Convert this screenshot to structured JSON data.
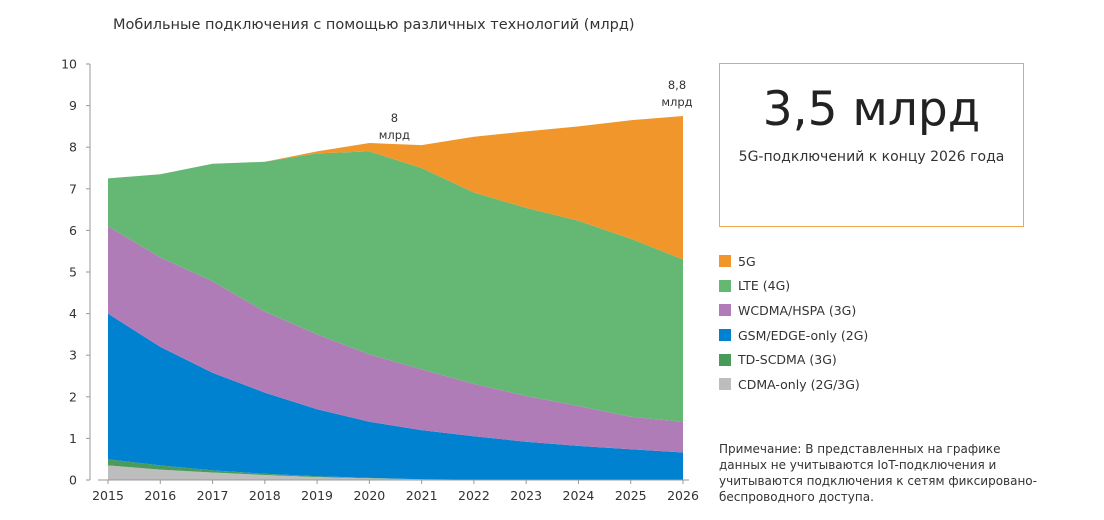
{
  "chart_data": {
    "type": "area",
    "stacked": true,
    "title": "Мобильные подключения с помощью различных технологий (млрд)",
    "xlabel": "",
    "ylabel": "",
    "x": [
      "2015",
      "2016",
      "2017",
      "2018",
      "2019",
      "2020",
      "2021",
      "2022",
      "2023",
      "2024",
      "2025",
      "2026"
    ],
    "ylim": [
      0,
      10
    ],
    "yticks": [
      "0",
      "1",
      "2",
      "3",
      "4",
      "5",
      "6",
      "7",
      "8",
      "9",
      "10"
    ],
    "grid": false,
    "legend_position": "right",
    "series": [
      {
        "name": "CDMA-only (2G/3G)",
        "color": "#bdbdbd",
        "values": [
          0.35,
          0.25,
          0.18,
          0.12,
          0.07,
          0.04,
          0.02,
          0.01,
          0.0,
          0.0,
          0.0,
          0.0
        ]
      },
      {
        "name": "TD-SCDMA (3G)",
        "color": "#4a9a5c",
        "values": [
          0.15,
          0.1,
          0.05,
          0.03,
          0.02,
          0.01,
          0.0,
          0.0,
          0.0,
          0.0,
          0.0,
          0.0
        ]
      },
      {
        "name": "GSM/EDGE-only (2G)",
        "color": "#0082d1",
        "values": [
          3.5,
          2.85,
          2.35,
          1.95,
          1.61,
          1.35,
          1.18,
          1.04,
          0.92,
          0.82,
          0.74,
          0.66
        ]
      },
      {
        "name": "WCDMA/HSPA (3G)",
        "color": "#b07cb8",
        "values": [
          2.1,
          2.15,
          2.2,
          1.95,
          1.8,
          1.62,
          1.46,
          1.26,
          1.1,
          0.96,
          0.78,
          0.74
        ]
      },
      {
        "name": "LTE (4G)",
        "color": "#64b874",
        "values": [
          1.15,
          2.0,
          2.82,
          3.6,
          4.35,
          4.88,
          4.84,
          4.6,
          4.52,
          4.45,
          4.28,
          3.9
        ]
      },
      {
        "name": "5G",
        "color": "#f0962a",
        "values": [
          0.0,
          0.0,
          0.0,
          0.0,
          0.05,
          0.2,
          0.55,
          1.34,
          1.84,
          2.27,
          2.85,
          3.45
        ]
      }
    ],
    "annotations": [
      {
        "x": "2020",
        "y": 8.0,
        "line1": "8",
        "line2": "млрд"
      },
      {
        "x": "2026",
        "y": 8.8,
        "line1": "8,8",
        "line2": "млрд"
      }
    ]
  },
  "kpi": {
    "value": "3,5 млрд",
    "caption": "5G-подключений к концу 2026 года",
    "border_color": "#f0a64a"
  },
  "legend_order": [
    "5G",
    "LTE (4G)",
    "WCDMA/HSPA (3G)",
    "GSM/EDGE-only (2G)",
    "TD-SCDMA (3G)",
    "CDMA-only (2G/3G)"
  ],
  "note": "Примечание: В представленных на графике данных не учитываются IoT-подключения и учитываются подключения к сетям фиксировано-беспроводного доступа."
}
